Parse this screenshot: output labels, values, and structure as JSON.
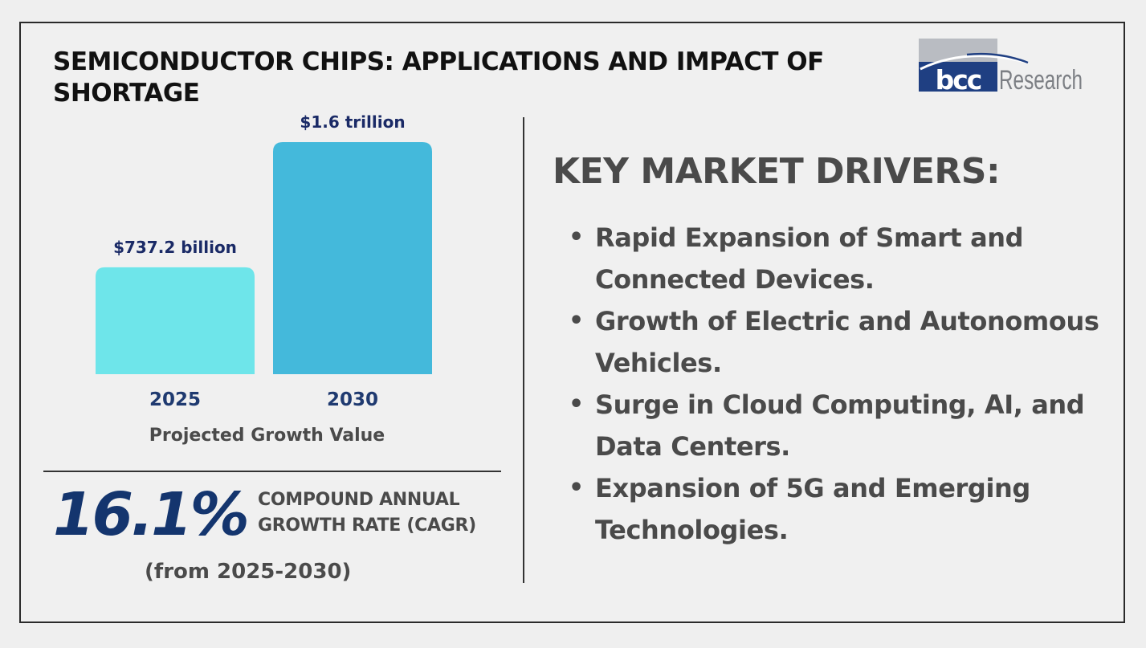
{
  "title": "SEMICONDUCTOR CHIPS: APPLICATIONS AND IMPACT OF SHORTAGE",
  "logo": {
    "brand": "bcc",
    "suffix": "Research",
    "colors": {
      "navy": "#1f3f82",
      "grey": "#7c7f84",
      "light_grey": "#b9bcc2"
    }
  },
  "chart_data": {
    "type": "bar",
    "categories": [
      "2025",
      "2030"
    ],
    "values": [
      737.2,
      1600
    ],
    "value_labels": [
      "$737.2 billion",
      "$1.6 trillion"
    ],
    "unit": "USD billion",
    "xlabel": "Projected Growth Value",
    "ylim": [
      0,
      1600
    ],
    "grid": false,
    "colors": [
      "#6ee5ea",
      "#44b9db"
    ],
    "label_color": "#1a2a66",
    "tick_color": "#1f3a70"
  },
  "cagr": {
    "value": "16.1%",
    "label_line1": "COMPOUND ANNUAL",
    "label_line2": "GROWTH RATE (CAGR)",
    "period": "(from 2025-2030)",
    "color": "#14356e"
  },
  "drivers": {
    "heading": "KEY MARKET DRIVERS:",
    "items": [
      {
        "bullet": "•",
        "line1": "Rapid Expansion of Smart and",
        "line2": "Connected Devices."
      },
      {
        "bullet": "•",
        "line1": "Growth of Electric and Autonomous",
        "line2": "Vehicles."
      },
      {
        "bullet": "•",
        "line1": "Surge in Cloud Computing, AI, and",
        "line2": "Data Centers."
      },
      {
        "bullet": "•",
        "line1": "Expansion of 5G and Emerging",
        "line2": "Technologies."
      }
    ]
  }
}
